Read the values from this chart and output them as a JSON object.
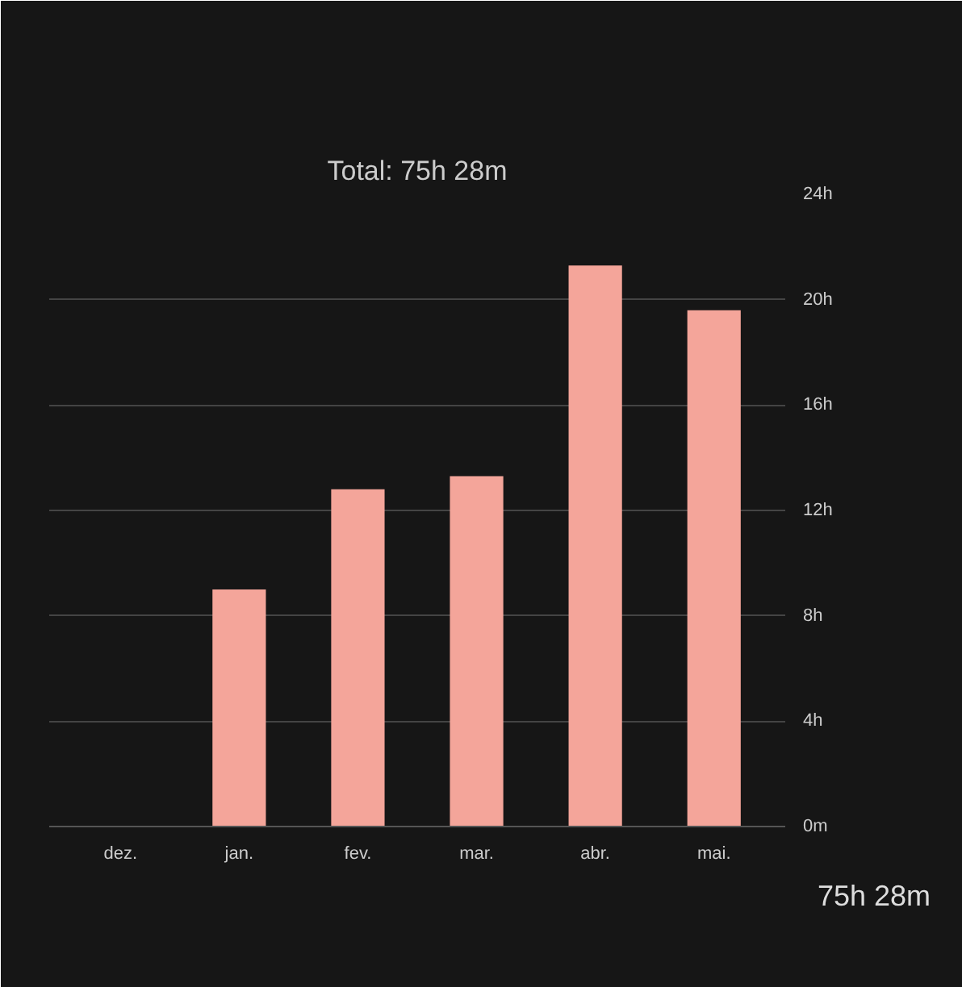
{
  "chart_data": {
    "type": "bar",
    "title": "Total: 75h 28m",
    "categories": [
      "dez.",
      "jan.",
      "fev.",
      "mar.",
      "abr.",
      "mai."
    ],
    "values": [
      0,
      9.0,
      12.8,
      13.3,
      21.3,
      19.6
    ],
    "color": "#f4a59a",
    "ylim": [
      0,
      24
    ],
    "yticks": [
      {
        "value": 0,
        "label": "0m"
      },
      {
        "value": 4,
        "label": "4h"
      },
      {
        "value": 8,
        "label": "8h"
      },
      {
        "value": 12,
        "label": "12h"
      },
      {
        "value": 16,
        "label": "16h"
      },
      {
        "value": 20,
        "label": "20h"
      },
      {
        "value": 24,
        "label": "24h"
      }
    ],
    "grid": "y",
    "annotations": [
      "75h 28m"
    ]
  }
}
